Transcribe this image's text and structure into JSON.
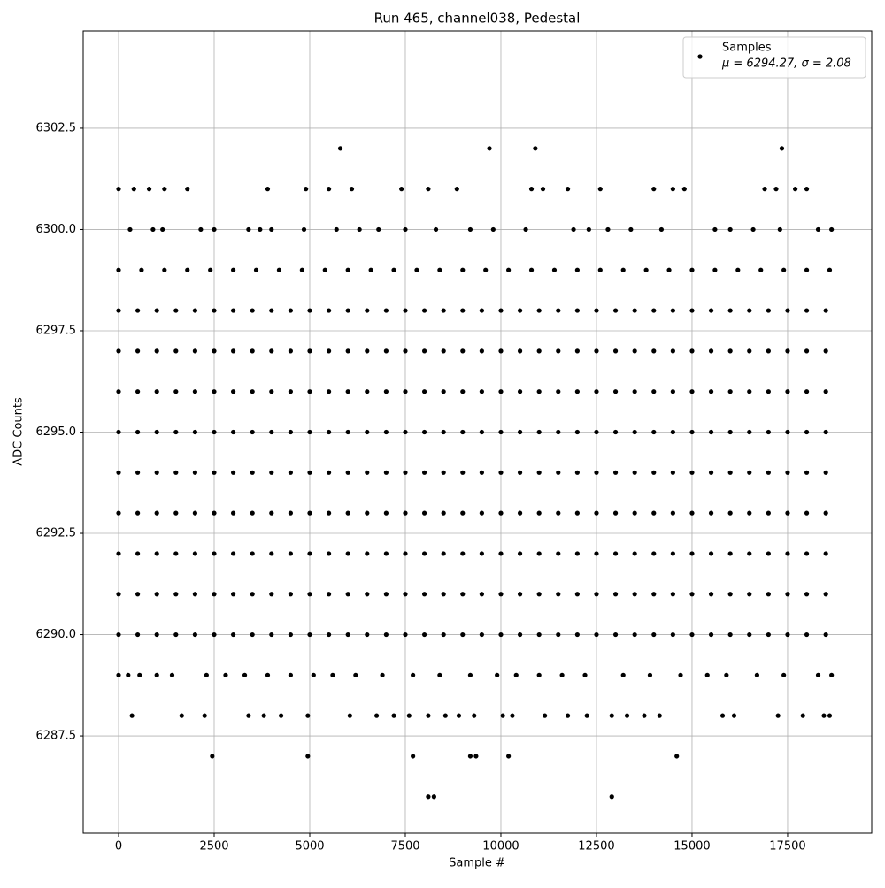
{
  "chart_data": {
    "type": "scatter",
    "title": "Run 465, channel038, Pedestal",
    "x_label": "Sample #",
    "y_label": "ADC Counts",
    "legend_note": "μ = 6294.27, σ = 2.08",
    "legend_position": "upper right",
    "grid": true,
    "xlim": [
      -926,
      19700
    ],
    "ylim": [
      6285.1,
      6304.9
    ],
    "xticks": [
      0,
      2500,
      5000,
      7500,
      10000,
      12500,
      15000,
      17500
    ],
    "yticks": [
      6287.5,
      {
        "value": 6290,
        "label": "6290.0"
      },
      6292.5,
      {
        "value": 6295,
        "label": "6295.0"
      },
      6297.5,
      {
        "value": 6300,
        "label": "6300.0"
      },
      6302.5
    ],
    "x": [
      0,
      500,
      1000,
      1500,
      2000,
      2500,
      3000,
      3500,
      4000,
      4500,
      5000,
      5500,
      6000,
      6500,
      7000,
      7500,
      8000,
      8500,
      9000,
      9500,
      10000,
      10500,
      11000,
      11500,
      12000,
      12500,
      13000,
      13500,
      14000,
      14500,
      15000,
      15500,
      16000,
      16500,
      17000,
      17500,
      18000,
      18500,
      0,
      500,
      1000,
      1500,
      2000,
      2500,
      3000,
      3500,
      4000,
      4500,
      5000,
      5500,
      6000,
      6500,
      7000,
      7500,
      8000,
      8500,
      9000,
      9500,
      10000,
      10500,
      11000,
      11500,
      12000,
      12500,
      13000,
      13500,
      14000,
      14500,
      15000,
      15500,
      16000,
      16500,
      17000,
      17500,
      18000,
      18500,
      0,
      500,
      1000,
      1500,
      2000,
      2500,
      3000,
      3500,
      4000,
      4500,
      5000,
      5500,
      6000,
      6500,
      7000,
      7500,
      8000,
      8500,
      9000,
      9500,
      10000,
      10500,
      11000,
      11500,
      12000,
      12500,
      13000,
      13500,
      14000,
      14500,
      15000,
      15500,
      16000,
      16500,
      17000,
      17500,
      18000,
      18500,
      0,
      500,
      1000,
      1500,
      2000,
      2500,
      3000,
      3500,
      4000,
      4500,
      5000,
      5500,
      6000,
      6500,
      7000,
      7500,
      8000,
      8500,
      9000,
      9500,
      10000,
      10500,
      11000,
      11500,
      12000,
      12500,
      13000,
      13500,
      14000,
      14500,
      15000,
      15500,
      16000,
      16500,
      17000,
      17500,
      18000,
      18500,
      0,
      500,
      1000,
      1500,
      2000,
      2500,
      3000,
      3500,
      4000,
      4500,
      5000,
      5500,
      6000,
      6500,
      7000,
      7500,
      8000,
      8500,
      9000,
      9500,
      10000,
      10500,
      11000,
      11500,
      12000,
      12500,
      13000,
      13500,
      14000,
      14500,
      15000,
      15500,
      16000,
      16500,
      17000,
      17500,
      18000,
      18500,
      0,
      500,
      1000,
      1500,
      2000,
      2500,
      3000,
      3500,
      4000,
      4500,
      5000,
      5500,
      6000,
      6500,
      7000,
      7500,
      8000,
      8500,
      9000,
      9500,
      10000,
      10500,
      11000,
      11500,
      12000,
      12500,
      13000,
      13500,
      14000,
      14500,
      15000,
      15500,
      16000,
      16500,
      17000,
      17500,
      18000,
      18500,
      0,
      500,
      1000,
      1500,
      2000,
      2500,
      3000,
      3500,
      4000,
      4500,
      5000,
      5500,
      6000,
      6500,
      7000,
      7500,
      8000,
      8500,
      9000,
      9500,
      10000,
      10500,
      11000,
      11500,
      12000,
      12500,
      13000,
      13500,
      14000,
      14500,
      15000,
      15500,
      16000,
      16500,
      17000,
      17500,
      18000,
      18500,
      0,
      500,
      1000,
      1500,
      2000,
      2500,
      3000,
      3500,
      4000,
      4500,
      5000,
      5500,
      6000,
      6500,
      7000,
      7500,
      8000,
      8500,
      9000,
      9500,
      10000,
      10500,
      11000,
      11500,
      12000,
      12500,
      13000,
      13500,
      14000,
      14500,
      15000,
      15500,
      16000,
      16500,
      17000,
      17500,
      18000,
      18500,
      0,
      500,
      1000,
      1500,
      2000,
      2500,
      3000,
      3500,
      4000,
      4500,
      5000,
      5500,
      6000,
      6500,
      7000,
      7500,
      8000,
      8500,
      9000,
      9500,
      10000,
      10500,
      11000,
      11500,
      12000,
      12500,
      13000,
      13500,
      14000,
      14500,
      15000,
      15500,
      16000,
      16500,
      17000,
      17500,
      18000,
      18500,
      0,
      600,
      1200,
      1800,
      2400,
      3000,
      3600,
      4200,
      4800,
      5400,
      6000,
      6600,
      7200,
      7800,
      8400,
      9000,
      9600,
      10200,
      10800,
      11400,
      12000,
      12600,
      13200,
      13800,
      14400,
      15000,
      15600,
      16200,
      16800,
      17400,
      18000,
      18600,
      0,
      250,
      550,
      1000,
      1400,
      2300,
      2800,
      3300,
      3900,
      4500,
      5100,
      5600,
      6200,
      6900,
      7700,
      8400,
      9200,
      9900,
      10400,
      11000,
      11600,
      12200,
      13200,
      13900,
      14700,
      15400,
      15900,
      16700,
      17400,
      18300,
      18650,
      300,
      900,
      1150,
      2150,
      2500,
      3400,
      3700,
      4000,
      4850,
      5700,
      6300,
      6800,
      7500,
      8300,
      9200,
      9800,
      10650,
      11900,
      12300,
      12800,
      13400,
      14200,
      15600,
      16000,
      16600,
      17300,
      18300,
      18650,
      0,
      400,
      800,
      1200,
      1800,
      3900,
      4900,
      5500,
      6100,
      7400,
      8100,
      8850,
      10800,
      11100,
      11750,
      12600,
      14000,
      14500,
      14800,
      16900,
      17200,
      17700,
      18000,
      5800,
      9700,
      10900,
      17350,
      350,
      1650,
      2250,
      3400,
      3800,
      4250,
      4950,
      6050,
      6750,
      7200,
      7600,
      8100,
      8550,
      8900,
      9300,
      10050,
      10300,
      11150,
      11750,
      12250,
      12900,
      13300,
      13750,
      14150,
      15800,
      16100,
      17250,
      17900,
      18450,
      18600,
      2450,
      4950,
      7700,
      9200,
      9350,
      10200,
      14600,
      8100,
      8250,
      12900
    ],
    "series": [
      {
        "name": "Samples",
        "color": "#000000",
        "values": [
          6297,
          6297,
          6297,
          6297,
          6297,
          6297,
          6297,
          6297,
          6297,
          6297,
          6297,
          6297,
          6297,
          6297,
          6297,
          6297,
          6297,
          6297,
          6297,
          6297,
          6297,
          6297,
          6297,
          6297,
          6297,
          6297,
          6297,
          6297,
          6297,
          6297,
          6297,
          6297,
          6297,
          6297,
          6297,
          6297,
          6297,
          6297,
          6296,
          6296,
          6296,
          6296,
          6296,
          6296,
          6296,
          6296,
          6296,
          6296,
          6296,
          6296,
          6296,
          6296,
          6296,
          6296,
          6296,
          6296,
          6296,
          6296,
          6296,
          6296,
          6296,
          6296,
          6296,
          6296,
          6296,
          6296,
          6296,
          6296,
          6296,
          6296,
          6296,
          6296,
          6296,
          6296,
          6296,
          6296,
          6295,
          6295,
          6295,
          6295,
          6295,
          6295,
          6295,
          6295,
          6295,
          6295,
          6295,
          6295,
          6295,
          6295,
          6295,
          6295,
          6295,
          6295,
          6295,
          6295,
          6295,
          6295,
          6295,
          6295,
          6295,
          6295,
          6295,
          6295,
          6295,
          6295,
          6295,
          6295,
          6295,
          6295,
          6295,
          6295,
          6295,
          6295,
          6294,
          6294,
          6294,
          6294,
          6294,
          6294,
          6294,
          6294,
          6294,
          6294,
          6294,
          6294,
          6294,
          6294,
          6294,
          6294,
          6294,
          6294,
          6294,
          6294,
          6294,
          6294,
          6294,
          6294,
          6294,
          6294,
          6294,
          6294,
          6294,
          6294,
          6294,
          6294,
          6294,
          6294,
          6294,
          6294,
          6294,
          6294,
          6293,
          6293,
          6293,
          6293,
          6293,
          6293,
          6293,
          6293,
          6293,
          6293,
          6293,
          6293,
          6293,
          6293,
          6293,
          6293,
          6293,
          6293,
          6293,
          6293,
          6293,
          6293,
          6293,
          6293,
          6293,
          6293,
          6293,
          6293,
          6293,
          6293,
          6293,
          6293,
          6293,
          6293,
          6293,
          6293,
          6293,
          6293,
          6292,
          6292,
          6292,
          6292,
          6292,
          6292,
          6292,
          6292,
          6292,
          6292,
          6292,
          6292,
          6292,
          6292,
          6292,
          6292,
          6292,
          6292,
          6292,
          6292,
          6292,
          6292,
          6292,
          6292,
          6292,
          6292,
          6292,
          6292,
          6292,
          6292,
          6292,
          6292,
          6292,
          6292,
          6292,
          6292,
          6292,
          6292,
          6291,
          6291,
          6291,
          6291,
          6291,
          6291,
          6291,
          6291,
          6291,
          6291,
          6291,
          6291,
          6291,
          6291,
          6291,
          6291,
          6291,
          6291,
          6291,
          6291,
          6291,
          6291,
          6291,
          6291,
          6291,
          6291,
          6291,
          6291,
          6291,
          6291,
          6291,
          6291,
          6291,
          6291,
          6291,
          6291,
          6291,
          6291,
          6290,
          6290,
          6290,
          6290,
          6290,
          6290,
          6290,
          6290,
          6290,
          6290,
          6290,
          6290,
          6290,
          6290,
          6290,
          6290,
          6290,
          6290,
          6290,
          6290,
          6290,
          6290,
          6290,
          6290,
          6290,
          6290,
          6290,
          6290,
          6290,
          6290,
          6290,
          6290,
          6290,
          6290,
          6290,
          6290,
          6290,
          6290,
          6298,
          6298,
          6298,
          6298,
          6298,
          6298,
          6298,
          6298,
          6298,
          6298,
          6298,
          6298,
          6298,
          6298,
          6298,
          6298,
          6298,
          6298,
          6298,
          6298,
          6298,
          6298,
          6298,
          6298,
          6298,
          6298,
          6298,
          6298,
          6298,
          6298,
          6298,
          6298,
          6298,
          6298,
          6298,
          6298,
          6298,
          6298,
          6299,
          6299,
          6299,
          6299,
          6299,
          6299,
          6299,
          6299,
          6299,
          6299,
          6299,
          6299,
          6299,
          6299,
          6299,
          6299,
          6299,
          6299,
          6299,
          6299,
          6299,
          6299,
          6299,
          6299,
          6299,
          6299,
          6299,
          6299,
          6299,
          6299,
          6299,
          6299,
          6289,
          6289,
          6289,
          6289,
          6289,
          6289,
          6289,
          6289,
          6289,
          6289,
          6289,
          6289,
          6289,
          6289,
          6289,
          6289,
          6289,
          6289,
          6289,
          6289,
          6289,
          6289,
          6289,
          6289,
          6289,
          6289,
          6289,
          6289,
          6289,
          6289,
          6289,
          6300,
          6300,
          6300,
          6300,
          6300,
          6300,
          6300,
          6300,
          6300,
          6300,
          6300,
          6300,
          6300,
          6300,
          6300,
          6300,
          6300,
          6300,
          6300,
          6300,
          6300,
          6300,
          6300,
          6300,
          6300,
          6300,
          6300,
          6300,
          6301,
          6301,
          6301,
          6301,
          6301,
          6301,
          6301,
          6301,
          6301,
          6301,
          6301,
          6301,
          6301,
          6301,
          6301,
          6301,
          6301,
          6301,
          6301,
          6301,
          6301,
          6301,
          6301,
          6302,
          6302,
          6302,
          6302,
          6288,
          6288,
          6288,
          6288,
          6288,
          6288,
          6288,
          6288,
          6288,
          6288,
          6288,
          6288,
          6288,
          6288,
          6288,
          6288,
          6288,
          6288,
          6288,
          6288,
          6288,
          6288,
          6288,
          6288,
          6288,
          6288,
          6288,
          6288,
          6288,
          6288,
          6287,
          6287,
          6287,
          6287,
          6287,
          6287,
          6287,
          6286,
          6286,
          6286
        ]
      }
    ]
  }
}
